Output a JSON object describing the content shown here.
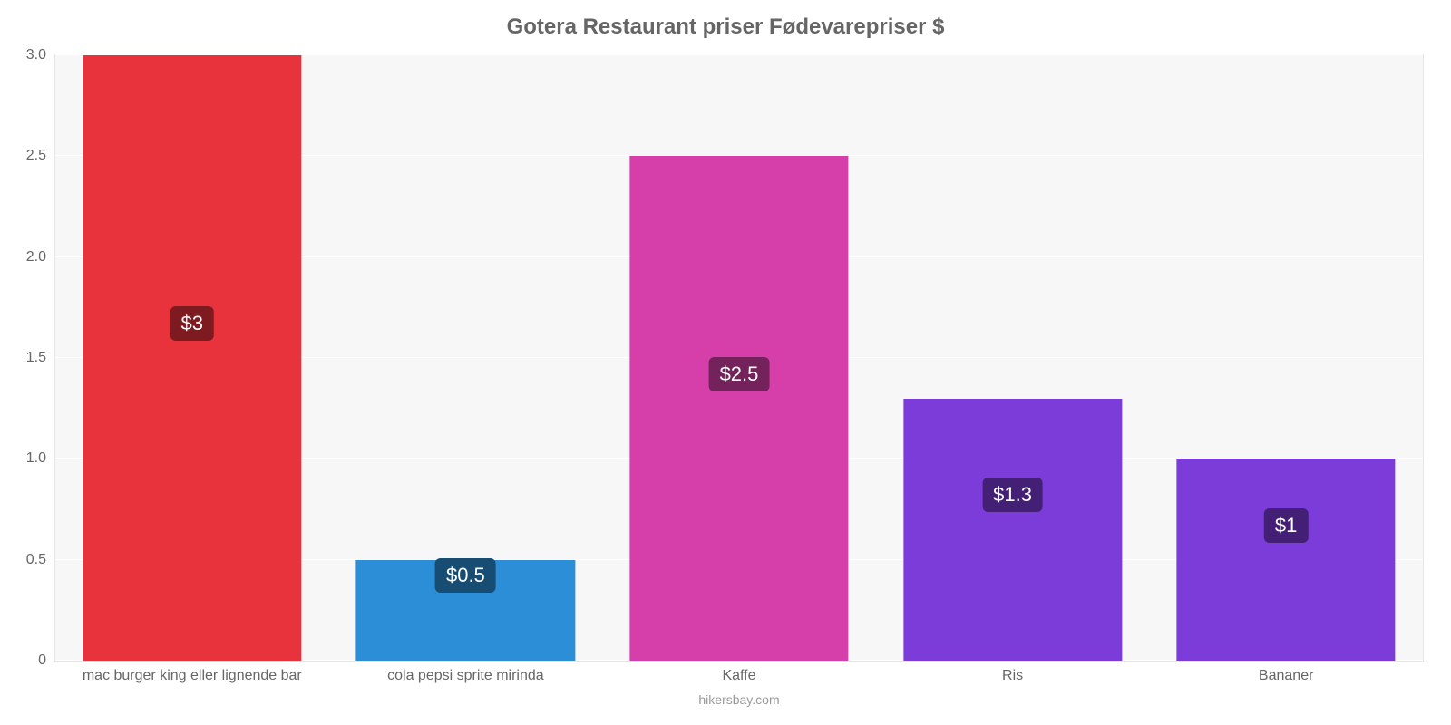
{
  "chart": {
    "type": "bar",
    "title": "Gotera Restaurant priser Fødevarepriser $",
    "title_fontsize": 24,
    "title_color": "#666666",
    "attribution": "hikersbay.com",
    "attribution_color": "#999999",
    "background_color": "#ffffff",
    "plot_background_color": "#f7f7f7",
    "grid_color": "#ffffff",
    "tick_color": "#666666",
    "label_fontsize": 16,
    "value_fontsize": 22,
    "ylim_min": 0,
    "ylim_max": 3.0,
    "yticks": [
      {
        "value": 0,
        "label": "0"
      },
      {
        "value": 0.5,
        "label": "0.5"
      },
      {
        "value": 1.0,
        "label": "1.0"
      },
      {
        "value": 1.5,
        "label": "1.5"
      },
      {
        "value": 2.0,
        "label": "2.0"
      },
      {
        "value": 2.5,
        "label": "2.5"
      },
      {
        "value": 3.0,
        "label": "3.0"
      }
    ],
    "bar_width_pct": 80,
    "bars": [
      {
        "category": "mac burger king eller lignende bar",
        "value": 3.0,
        "value_label": "$3",
        "color": "#e8323c",
        "badge_color": "#7d1b20"
      },
      {
        "category": "cola pepsi sprite mirinda",
        "value": 0.5,
        "value_label": "$0.5",
        "color": "#2b8ed6",
        "badge_color": "#174c73"
      },
      {
        "category": "Kaffe",
        "value": 2.5,
        "value_label": "$2.5",
        "color": "#d63fa9",
        "badge_color": "#73225b"
      },
      {
        "category": "Ris",
        "value": 1.3,
        "value_label": "$1.3",
        "color": "#7c3cd9",
        "badge_color": "#432075"
      },
      {
        "category": "Bananer",
        "value": 1.0,
        "value_label": "$1",
        "color": "#7c3cd9",
        "badge_color": "#432075"
      }
    ]
  }
}
